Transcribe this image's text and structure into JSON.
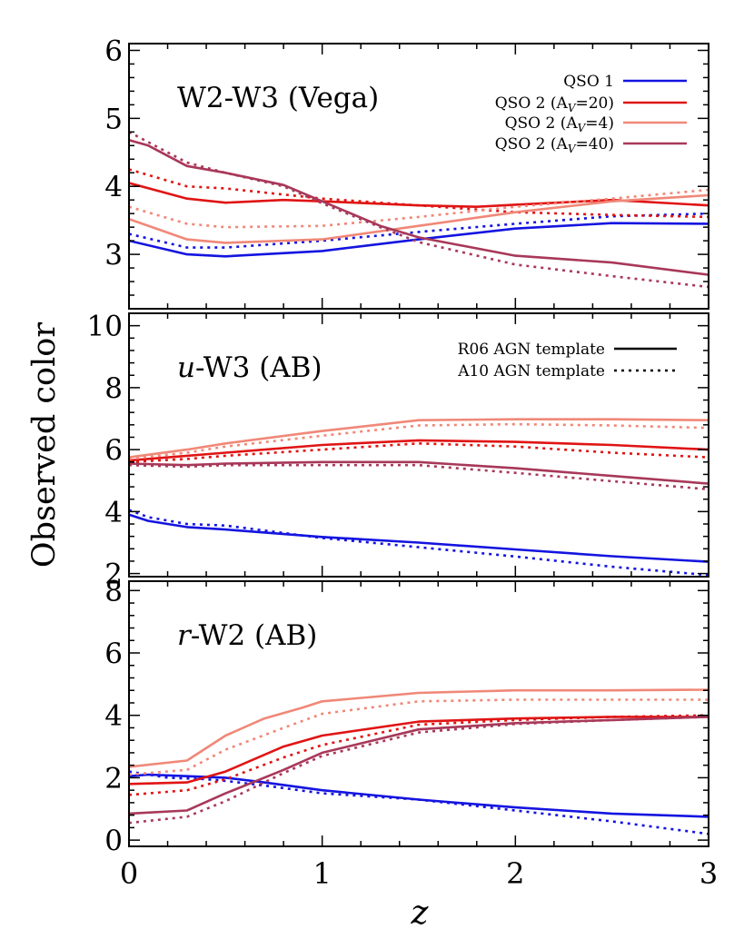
{
  "figure": {
    "ylabel": "Observed color",
    "xlabel": "z",
    "colors": {
      "qso1": "#1414e0",
      "qso2_av20": "#e01414",
      "qso2_av4": "#f08878",
      "qso2_av40": "#a8385a",
      "frame": "#000000"
    }
  },
  "legend_series": [
    {
      "key": "qso1",
      "label": "QSO 1",
      "sub": "",
      "after": ""
    },
    {
      "key": "qso2_av20",
      "label": "QSO 2 (A",
      "sub": "V",
      "after": "=20)"
    },
    {
      "key": "qso2_av4",
      "label": "QSO 2 (A",
      "sub": "V",
      "after": "=4)"
    },
    {
      "key": "qso2_av40",
      "label": "QSO 2 (A",
      "sub": "V",
      "after": "=40)"
    }
  ],
  "legend_templates": [
    {
      "label": "R06 AGN template",
      "style": "solid"
    },
    {
      "label": "A10 AGN template",
      "style": "dotted"
    }
  ],
  "chart_data": [
    {
      "type": "line",
      "title_italic": "",
      "title_rest": "W2-W3 (Vega)",
      "xlim": [
        0,
        3
      ],
      "ylim": [
        2.2,
        6.1
      ],
      "xticks": [
        0,
        1,
        2,
        3
      ],
      "yticks": [
        3,
        4,
        5,
        6
      ],
      "series": [
        {
          "key": "qso1",
          "template": "R06",
          "x": [
            0,
            0.3,
            0.5,
            1.0,
            1.5,
            2.0,
            2.5,
            3.0
          ],
          "y": [
            3.2,
            3.0,
            2.97,
            3.05,
            3.22,
            3.38,
            3.46,
            3.45
          ]
        },
        {
          "key": "qso1",
          "template": "A10",
          "x": [
            0,
            0.3,
            0.5,
            1.0,
            1.5,
            2.0,
            2.5,
            3.0
          ],
          "y": [
            3.3,
            3.1,
            3.1,
            3.2,
            3.33,
            3.45,
            3.56,
            3.6
          ]
        },
        {
          "key": "qso2_av20",
          "template": "R06",
          "x": [
            0,
            0.3,
            0.5,
            0.8,
            1.0,
            1.5,
            1.8,
            2.0,
            2.5,
            3.0
          ],
          "y": [
            4.05,
            3.82,
            3.76,
            3.8,
            3.78,
            3.72,
            3.7,
            3.73,
            3.8,
            3.72
          ]
        },
        {
          "key": "qso2_av20",
          "template": "A10",
          "x": [
            0,
            0.3,
            0.5,
            1.0,
            1.5,
            2.0,
            2.5,
            3.0
          ],
          "y": [
            4.25,
            4.0,
            3.97,
            3.82,
            3.72,
            3.62,
            3.58,
            3.55
          ]
        },
        {
          "key": "qso2_av4",
          "template": "R06",
          "x": [
            0,
            0.3,
            0.5,
            1.0,
            1.5,
            2.0,
            2.5,
            3.0
          ],
          "y": [
            3.52,
            3.22,
            3.17,
            3.22,
            3.42,
            3.62,
            3.78,
            3.87
          ]
        },
        {
          "key": "qso2_av4",
          "template": "A10",
          "x": [
            0,
            0.3,
            0.5,
            1.0,
            1.5,
            2.0,
            2.5,
            3.0
          ],
          "y": [
            3.7,
            3.45,
            3.4,
            3.42,
            3.55,
            3.7,
            3.82,
            3.95
          ]
        },
        {
          "key": "qso2_av40",
          "template": "R06",
          "x": [
            0,
            0.1,
            0.3,
            0.5,
            0.8,
            1.0,
            1.3,
            1.5,
            2.0,
            2.5,
            3.0
          ],
          "y": [
            4.68,
            4.6,
            4.3,
            4.2,
            4.02,
            3.78,
            3.42,
            3.25,
            2.98,
            2.88,
            2.7
          ]
        },
        {
          "key": "qso2_av40",
          "template": "A10",
          "x": [
            0,
            0.3,
            0.5,
            0.8,
            1.0,
            1.3,
            1.5,
            2.0,
            2.5,
            3.0
          ],
          "y": [
            4.8,
            4.35,
            4.2,
            4.0,
            3.75,
            3.4,
            3.18,
            2.85,
            2.68,
            2.52
          ]
        }
      ]
    },
    {
      "type": "line",
      "title_italic": "u",
      "title_rest": "-W3 (AB)",
      "xlim": [
        0,
        3
      ],
      "ylim": [
        1.9,
        10.4
      ],
      "xticks": [
        0,
        1,
        2,
        3
      ],
      "yticks": [
        2,
        4,
        6,
        8,
        10
      ],
      "series": [
        {
          "key": "qso1",
          "template": "R06",
          "x": [
            0,
            0.1,
            0.3,
            0.5,
            1.0,
            1.5,
            2.0,
            2.5,
            3.0
          ],
          "y": [
            3.9,
            3.7,
            3.5,
            3.42,
            3.18,
            3.0,
            2.78,
            2.56,
            2.38
          ]
        },
        {
          "key": "qso1",
          "template": "A10",
          "x": [
            0,
            0.1,
            0.3,
            0.5,
            1.0,
            1.5,
            2.0,
            2.5,
            3.0
          ],
          "y": [
            4.05,
            3.82,
            3.6,
            3.55,
            3.15,
            2.85,
            2.55,
            2.22,
            1.95
          ]
        },
        {
          "key": "qso2_av20",
          "template": "R06",
          "x": [
            0,
            0.3,
            0.5,
            1.0,
            1.5,
            2.0,
            2.5,
            3.0
          ],
          "y": [
            5.65,
            5.8,
            5.9,
            6.15,
            6.3,
            6.25,
            6.15,
            6.0
          ]
        },
        {
          "key": "qso2_av20",
          "template": "A10",
          "x": [
            0,
            0.3,
            0.5,
            1.0,
            1.5,
            2.0,
            2.5,
            3.0
          ],
          "y": [
            5.6,
            5.7,
            5.8,
            6.0,
            6.2,
            6.1,
            5.9,
            5.75
          ]
        },
        {
          "key": "qso2_av4",
          "template": "R06",
          "x": [
            0,
            0.3,
            0.5,
            1.0,
            1.5,
            2.0,
            2.5,
            3.0
          ],
          "y": [
            5.75,
            6.0,
            6.2,
            6.6,
            6.95,
            6.98,
            6.98,
            6.95
          ]
        },
        {
          "key": "qso2_av4",
          "template": "A10",
          "x": [
            0,
            0.3,
            0.5,
            1.0,
            1.5,
            2.0,
            2.5,
            3.0
          ],
          "y": [
            5.7,
            5.9,
            6.1,
            6.45,
            6.78,
            6.82,
            6.78,
            6.7
          ]
        },
        {
          "key": "qso2_av40",
          "template": "R06",
          "x": [
            0,
            0.3,
            0.5,
            1.0,
            1.5,
            2.0,
            2.5,
            3.0
          ],
          "y": [
            5.55,
            5.5,
            5.55,
            5.6,
            5.6,
            5.4,
            5.15,
            4.9
          ]
        },
        {
          "key": "qso2_av40",
          "template": "A10",
          "x": [
            0,
            0.3,
            0.5,
            1.0,
            1.5,
            2.0,
            2.5,
            3.0
          ],
          "y": [
            5.5,
            5.45,
            5.5,
            5.5,
            5.5,
            5.25,
            4.98,
            4.72
          ]
        }
      ]
    },
    {
      "type": "line",
      "title_italic": "r",
      "title_rest": "-W2 (AB)",
      "xlim": [
        0,
        3
      ],
      "ylim": [
        -0.2,
        8.3
      ],
      "xticks": [
        0,
        1,
        2,
        3
      ],
      "yticks": [
        0,
        2,
        4,
        6,
        8
      ],
      "series": [
        {
          "key": "qso1",
          "template": "R06",
          "x": [
            0,
            0.1,
            0.3,
            0.5,
            0.7,
            1.0,
            1.5,
            2.0,
            2.5,
            3.0
          ],
          "y": [
            2.05,
            2.1,
            2.05,
            2.0,
            1.85,
            1.6,
            1.3,
            1.05,
            0.85,
            0.75
          ]
        },
        {
          "key": "qso1",
          "template": "A10",
          "x": [
            0,
            0.2,
            0.4,
            0.5,
            0.7,
            1.0,
            1.5,
            2.0,
            2.5,
            3.0
          ],
          "y": [
            2.2,
            2.0,
            1.95,
            1.9,
            1.75,
            1.5,
            1.3,
            0.95,
            0.6,
            0.2
          ]
        },
        {
          "key": "qso2_av20",
          "template": "R06",
          "x": [
            0,
            0.3,
            0.5,
            0.8,
            1.0,
            1.5,
            2.0,
            2.5,
            3.0
          ],
          "y": [
            1.8,
            1.85,
            2.2,
            3.0,
            3.35,
            3.8,
            3.9,
            3.95,
            3.95
          ]
        },
        {
          "key": "qso2_av20",
          "template": "A10",
          "x": [
            0,
            0.3,
            0.5,
            0.8,
            1.0,
            1.5,
            2.0,
            2.5,
            3.0
          ],
          "y": [
            1.45,
            1.6,
            1.95,
            2.65,
            3.05,
            3.7,
            3.85,
            3.95,
            4.0
          ]
        },
        {
          "key": "qso2_av4",
          "template": "R06",
          "x": [
            0,
            0.3,
            0.5,
            0.7,
            0.9,
            1.0,
            1.5,
            2.0,
            2.5,
            3.0
          ],
          "y": [
            2.35,
            2.55,
            3.35,
            3.9,
            4.25,
            4.45,
            4.72,
            4.8,
            4.8,
            4.82
          ]
        },
        {
          "key": "qso2_av4",
          "template": "A10",
          "x": [
            0,
            0.3,
            0.5,
            0.8,
            1.0,
            1.5,
            2.0,
            2.5,
            3.0
          ],
          "y": [
            2.1,
            2.25,
            2.9,
            3.6,
            4.05,
            4.45,
            4.5,
            4.5,
            4.5
          ]
        },
        {
          "key": "qso2_av40",
          "template": "R06",
          "x": [
            0,
            0.3,
            0.5,
            0.8,
            1.0,
            1.5,
            2.0,
            2.5,
            3.0
          ],
          "y": [
            0.85,
            0.95,
            1.5,
            2.25,
            2.8,
            3.55,
            3.75,
            3.85,
            3.95
          ]
        },
        {
          "key": "qso2_av40",
          "template": "A10",
          "x": [
            0,
            0.3,
            0.5,
            0.8,
            1.0,
            1.5,
            2.0,
            2.5,
            3.0
          ],
          "y": [
            0.55,
            0.75,
            1.25,
            2.15,
            2.7,
            3.45,
            3.72,
            3.85,
            3.95
          ]
        }
      ]
    }
  ]
}
